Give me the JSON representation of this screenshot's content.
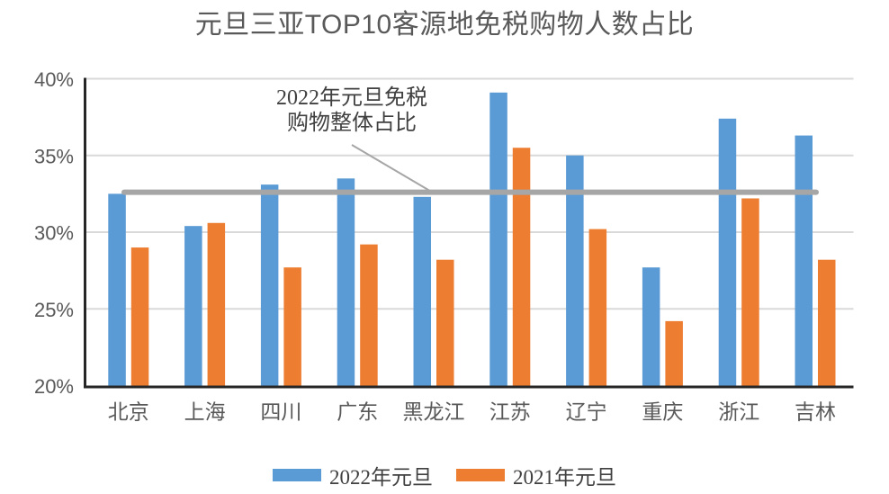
{
  "chart_data": {
    "type": "bar",
    "title": "元旦三亚TOP10客源地免税购物人数占比",
    "categories": [
      "北京",
      "上海",
      "四川",
      "广东",
      "黑龙江",
      "江苏",
      "辽宁",
      "重庆",
      "浙江",
      "吉林"
    ],
    "series": [
      {
        "name": "2022年元旦",
        "color": "#5B9BD5",
        "values": [
          32.5,
          30.4,
          33.1,
          33.5,
          32.3,
          39.1,
          35.0,
          27.7,
          37.4,
          36.3
        ]
      },
      {
        "name": "2021年元旦",
        "color": "#ED7D31",
        "values": [
          29.0,
          30.6,
          27.7,
          29.2,
          28.2,
          35.5,
          30.2,
          24.2,
          32.2,
          28.2
        ]
      }
    ],
    "reference_line": {
      "value": 32.6,
      "color": "#A6A6A6",
      "label_line1": "2022年元旦免税",
      "label_line2": "购物整体占比"
    },
    "y_axis": {
      "min": 20,
      "max": 40,
      "tick_step": 5,
      "tick_labels": [
        "20%",
        "25%",
        "30%",
        "35%",
        "40%"
      ]
    },
    "xlabel": "",
    "ylabel": "",
    "grid": true,
    "legend_position": "bottom",
    "style": {
      "grid_color": "#D9D9D9",
      "axis_line_color": "#262626",
      "text_color": "#595959",
      "background": "#FFFFFF"
    }
  }
}
